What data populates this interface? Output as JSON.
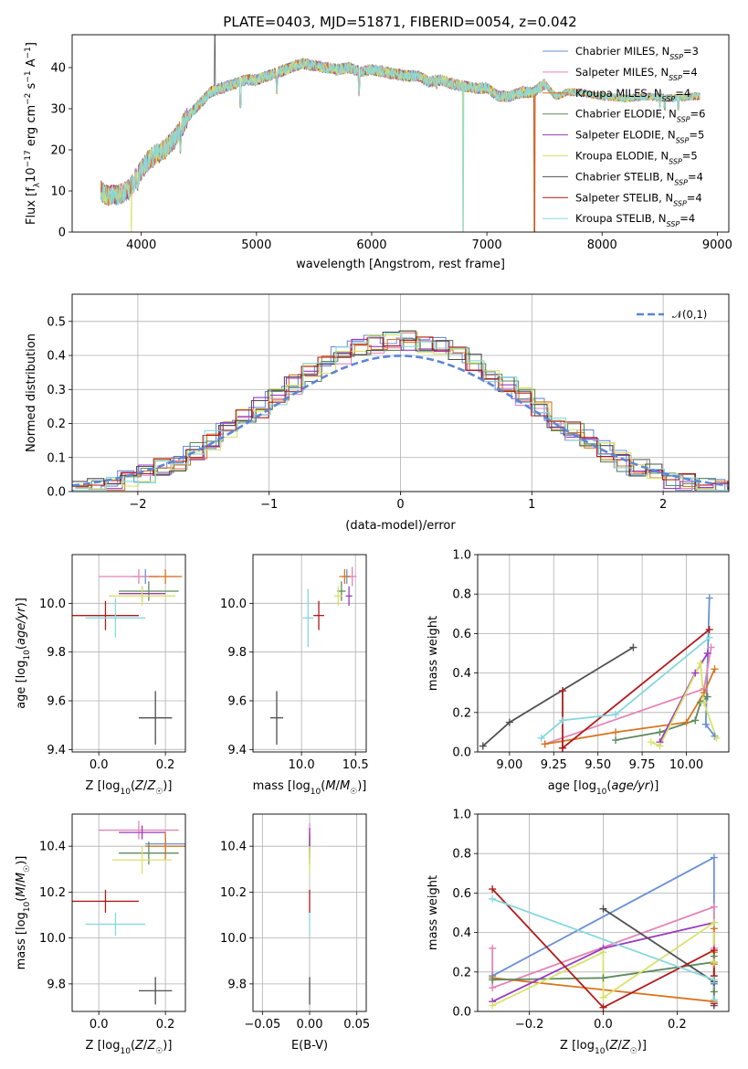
{
  "figure": {
    "title": "PLATE=0403, MJD=51871, FIBERID=0054, z=0.042"
  },
  "colors": {
    "Chabrier MILES": "#6a8fd8",
    "Salpeter MILES": "#e585b6",
    "Kroupa MILES": "#d8751f",
    "Chabrier ELODIE": "#5e8a5e",
    "Salpeter ELODIE": "#9a3bbf",
    "Kroupa ELODIE": "#d8e36a",
    "Chabrier STELIB": "#4f4f4f",
    "Salpeter STELIB": "#b01a1a",
    "Kroupa STELIB": "#86d8de"
  },
  "chart_data": [
    {
      "id": "spectrum",
      "type": "line",
      "xlabel": "wavelength [Angstrom, rest frame]",
      "ylabel": "Flux [f_λ 10^-17 erg cm^-2 s^-1 A^-1]",
      "xlim": [
        3400,
        9100
      ],
      "ylim": [
        0,
        48
      ],
      "xticks": [
        4000,
        5000,
        6000,
        7000,
        8000,
        9000
      ],
      "yticks": [
        0,
        10,
        20,
        30,
        40
      ],
      "grid": false,
      "legend_position": "top-right",
      "series": [
        {
          "name": "Chabrier MILES",
          "nssp": "3"
        },
        {
          "name": "Salpeter MILES",
          "nssp": "4"
        },
        {
          "name": "Kroupa MILES",
          "nssp": "4"
        },
        {
          "name": "Chabrier ELODIE",
          "nssp": "6"
        },
        {
          "name": "Salpeter ELODIE",
          "nssp": "5"
        },
        {
          "name": "Kroupa ELODIE",
          "nssp": "5"
        },
        {
          "name": "Chabrier STELIB",
          "nssp": "4"
        },
        {
          "name": "Salpeter STELIB",
          "nssp": "4"
        },
        {
          "name": "Kroupa STELIB",
          "nssp": "4"
        }
      ],
      "continuum": [
        [
          3650,
          10
        ],
        [
          3700,
          9
        ],
        [
          3800,
          9
        ],
        [
          3900,
          10.5
        ],
        [
          3950,
          13
        ],
        [
          4000,
          15
        ],
        [
          4050,
          17
        ],
        [
          4100,
          18.5
        ],
        [
          4200,
          20
        ],
        [
          4300,
          23
        ],
        [
          4400,
          28
        ],
        [
          4500,
          31
        ],
        [
          4600,
          34
        ],
        [
          4700,
          35
        ],
        [
          4800,
          36
        ],
        [
          4900,
          37
        ],
        [
          5000,
          37
        ],
        [
          5100,
          38
        ],
        [
          5200,
          39
        ],
        [
          5300,
          40
        ],
        [
          5400,
          41
        ],
        [
          5500,
          40.5
        ],
        [
          5600,
          40
        ],
        [
          5700,
          39.5
        ],
        [
          5800,
          40
        ],
        [
          5900,
          39
        ],
        [
          6000,
          39.5
        ],
        [
          6100,
          39
        ],
        [
          6200,
          38.5
        ],
        [
          6300,
          38
        ],
        [
          6400,
          38
        ],
        [
          6500,
          36.5
        ],
        [
          6600,
          37
        ],
        [
          6700,
          36
        ],
        [
          6800,
          35.5
        ],
        [
          6900,
          35
        ],
        [
          7000,
          35
        ],
        [
          7100,
          33
        ],
        [
          7200,
          33
        ],
        [
          7300,
          34
        ],
        [
          7400,
          34
        ],
        [
          7500,
          36
        ],
        [
          7600,
          33
        ],
        [
          7700,
          34
        ],
        [
          7800,
          34
        ],
        [
          7900,
          33.5
        ],
        [
          8000,
          33
        ],
        [
          8200,
          32.5
        ],
        [
          8400,
          33
        ],
        [
          8600,
          32.5
        ],
        [
          8800,
          33
        ]
      ],
      "absorption_lines": [
        [
          3934,
          10.5
        ],
        [
          3969,
          11
        ],
        [
          4101,
          16.5
        ],
        [
          4340,
          20
        ],
        [
          4861,
          31
        ],
        [
          5175,
          34.5
        ],
        [
          5890,
          34
        ],
        [
          6563,
          35.5
        ],
        [
          8500,
          31
        ],
        [
          8542,
          30.5
        ],
        [
          8662,
          30.5
        ]
      ]
    },
    {
      "id": "residuals",
      "type": "line",
      "xlabel": "(data-model)/error",
      "ylabel": "Normed distribution",
      "xlim": [
        -2.5,
        2.5
      ],
      "ylim": [
        0,
        0.58
      ],
      "xticks": [
        -2,
        -1,
        0,
        1,
        2
      ],
      "yticks": [
        0.0,
        0.1,
        0.2,
        0.3,
        0.4,
        0.5
      ],
      "grid": true,
      "legend_position": "top-right",
      "reference_curve": {
        "name": "𝒩(0,1)",
        "mean": 0,
        "sigma": 1
      },
      "histogram_bin_width": 0.125
    },
    {
      "id": "age_vs_Z",
      "type": "scatter",
      "xlabel": "Z [log10(Z/Z☉)]",
      "ylabel": "age  [log10(age/yr)]",
      "xlim": [
        -0.08,
        0.26
      ],
      "ylim": [
        9.39,
        10.2
      ],
      "xticks": [
        0.0,
        0.2
      ],
      "yticks": [
        9.4,
        9.6,
        9.8,
        10.0
      ],
      "grid": true,
      "points": [
        {
          "series": "Chabrier MILES",
          "x": 0.14,
          "xerr": 0.04,
          "y": 10.11,
          "yerr": 0.03
        },
        {
          "series": "Salpeter MILES",
          "x": 0.12,
          "xerr": 0.12,
          "y": 10.11,
          "yerr": 0.03
        },
        {
          "series": "Kroupa MILES",
          "x": 0.2,
          "xerr": 0.05,
          "y": 10.11,
          "yerr": 0.03
        },
        {
          "series": "Chabrier ELODIE",
          "x": 0.15,
          "xerr": 0.09,
          "y": 10.05,
          "yerr": 0.04
        },
        {
          "series": "Salpeter ELODIE",
          "x": 0.13,
          "xerr": 0.07,
          "y": 10.04,
          "yerr": 0.03
        },
        {
          "series": "Kroupa ELODIE",
          "x": 0.13,
          "xerr": 0.1,
          "y": 10.03,
          "yerr": 0.04
        },
        {
          "series": "Chabrier STELIB",
          "x": 0.17,
          "xerr": 0.05,
          "y": 9.53,
          "yerr": 0.11
        },
        {
          "series": "Salpeter STELIB",
          "x": 0.02,
          "xerr": 0.1,
          "y": 9.95,
          "yerr": 0.06
        },
        {
          "series": "Kroupa STELIB",
          "x": 0.05,
          "xerr": 0.09,
          "y": 9.94,
          "yerr": 0.08
        }
      ]
    },
    {
      "id": "age_vs_mass",
      "type": "scatter",
      "xlabel": "mass [log10(M/M☉)]",
      "ylabel": "",
      "xlim": [
        9.55,
        10.6
      ],
      "ylim": [
        9.39,
        10.2
      ],
      "xticks": [
        10.0,
        10.5
      ],
      "yticks": [
        9.4,
        9.6,
        9.8,
        10.0
      ],
      "grid": true,
      "points": [
        {
          "series": "Chabrier MILES",
          "x": 10.42,
          "xerr": 0.04,
          "y": 10.11,
          "yerr": 0.03
        },
        {
          "series": "Salpeter MILES",
          "x": 10.47,
          "xerr": 0.04,
          "y": 10.11,
          "yerr": 0.04
        },
        {
          "series": "Kroupa MILES",
          "x": 10.4,
          "xerr": 0.05,
          "y": 10.11,
          "yerr": 0.03
        },
        {
          "series": "Chabrier ELODIE",
          "x": 10.37,
          "xerr": 0.04,
          "y": 10.05,
          "yerr": 0.04
        },
        {
          "series": "Salpeter ELODIE",
          "x": 10.44,
          "xerr": 0.03,
          "y": 10.03,
          "yerr": 0.04
        },
        {
          "series": "Kroupa ELODIE",
          "x": 10.34,
          "xerr": 0.04,
          "y": 10.03,
          "yerr": 0.04
        },
        {
          "series": "Chabrier STELIB",
          "x": 9.77,
          "xerr": 0.06,
          "y": 9.53,
          "yerr": 0.11
        },
        {
          "series": "Salpeter STELIB",
          "x": 10.16,
          "xerr": 0.05,
          "y": 9.95,
          "yerr": 0.06
        },
        {
          "series": "Kroupa STELIB",
          "x": 10.06,
          "xerr": 0.05,
          "y": 9.94,
          "yerr": 0.12
        }
      ]
    },
    {
      "id": "weights_vs_age",
      "type": "line",
      "xlabel": "age  [log10(age/yr)]",
      "ylabel": "mass weight",
      "xlim": [
        8.82,
        10.24
      ],
      "ylim": [
        0,
        1.0
      ],
      "xticks": [
        9.0,
        9.25,
        9.5,
        9.75,
        10.0
      ],
      "yticks": [
        0.0,
        0.2,
        0.4,
        0.6,
        0.8,
        1.0
      ],
      "grid": true,
      "series": [
        {
          "name": "Chabrier MILES",
          "x": [
            10.13,
            10.11,
            10.16
          ],
          "y": [
            0.78,
            0.14,
            0.08
          ]
        },
        {
          "name": "Salpeter MILES",
          "x": [
            9.2,
            10.1,
            10.14
          ],
          "y": [
            0.04,
            0.32,
            0.53
          ]
        },
        {
          "name": "Kroupa MILES",
          "x": [
            9.2,
            9.6,
            10.0,
            10.1,
            10.16
          ],
          "y": [
            0.04,
            0.1,
            0.15,
            0.3,
            0.42
          ]
        },
        {
          "name": "Chabrier ELODIE",
          "x": [
            9.6,
            9.85,
            10.05,
            10.08,
            10.12
          ],
          "y": [
            0.06,
            0.1,
            0.16,
            0.25,
            0.28
          ]
        },
        {
          "name": "Salpeter ELODIE",
          "x": [
            9.85,
            10.05,
            10.12
          ],
          "y": [
            0.05,
            0.4,
            0.5
          ]
        },
        {
          "name": "Kroupa ELODIE",
          "x": [
            9.8,
            9.85,
            10.08,
            10.1,
            10.17
          ],
          "y": [
            0.05,
            0.03,
            0.45,
            0.25,
            0.07
          ]
        },
        {
          "name": "Chabrier STELIB",
          "x": [
            8.85,
            9.0,
            9.7
          ],
          "y": [
            0.03,
            0.15,
            0.53
          ]
        },
        {
          "name": "Salpeter STELIB",
          "x": [
            9.3,
            9.3,
            9.3,
            10.13
          ],
          "y": [
            0.31,
            0.02,
            0.02,
            0.62
          ]
        },
        {
          "name": "Kroupa STELIB",
          "x": [
            9.18,
            9.3,
            9.6,
            10.13
          ],
          "y": [
            0.07,
            0.16,
            0.19,
            0.58
          ]
        }
      ]
    },
    {
      "id": "mass_vs_Z",
      "type": "scatter",
      "xlabel": "Z [log10(Z/Z☉)]",
      "ylabel": "mass [log10(M/M☉)]",
      "xlim": [
        -0.08,
        0.26
      ],
      "ylim": [
        9.68,
        10.54
      ],
      "xticks": [
        0.0,
        0.2
      ],
      "yticks": [
        9.8,
        10.0,
        10.2,
        10.4
      ],
      "grid": true,
      "points": [
        {
          "series": "Chabrier MILES",
          "x": 0.2,
          "xerr": 0.06,
          "y": 10.41,
          "yerr": 0.04
        },
        {
          "series": "Salpeter MILES",
          "x": 0.12,
          "xerr": 0.12,
          "y": 10.47,
          "yerr": 0.04
        },
        {
          "series": "Kroupa MILES",
          "x": 0.2,
          "xerr": 0.06,
          "y": 10.4,
          "yerr": 0.06
        },
        {
          "series": "Chabrier ELODIE",
          "x": 0.15,
          "xerr": 0.09,
          "y": 10.37,
          "yerr": 0.05
        },
        {
          "series": "Salpeter ELODIE",
          "x": 0.13,
          "xerr": 0.07,
          "y": 10.46,
          "yerr": 0.03
        },
        {
          "series": "Kroupa ELODIE",
          "x": 0.13,
          "xerr": 0.09,
          "y": 10.34,
          "yerr": 0.06
        },
        {
          "series": "Chabrier STELIB",
          "x": 0.17,
          "xerr": 0.05,
          "y": 9.77,
          "yerr": 0.06
        },
        {
          "series": "Salpeter STELIB",
          "x": 0.02,
          "xerr": 0.1,
          "y": 10.16,
          "yerr": 0.05
        },
        {
          "series": "Kroupa STELIB",
          "x": 0.05,
          "xerr": 0.09,
          "y": 10.06,
          "yerr": 0.05
        }
      ]
    },
    {
      "id": "mass_vs_EBV",
      "type": "scatter",
      "xlabel": "E(B-V)",
      "ylabel": "",
      "xlim": [
        -0.06,
        0.06
      ],
      "ylim": [
        9.68,
        10.54
      ],
      "xticks": [
        -0.05,
        0.0,
        0.05
      ],
      "yticks": [
        9.8,
        10.0,
        10.2,
        10.4
      ],
      "grid": true,
      "points": [
        {
          "series": "Chabrier MILES",
          "x": 0.0,
          "y": 10.42,
          "yerr": 0.04
        },
        {
          "series": "Salpeter MILES",
          "x": 0.0,
          "y": 10.46,
          "yerr": 0.04
        },
        {
          "series": "Kroupa MILES",
          "x": 0.0,
          "y": 10.4,
          "yerr": 0.05
        },
        {
          "series": "Chabrier ELODIE",
          "x": 0.0,
          "y": 10.37,
          "yerr": 0.05
        },
        {
          "series": "Salpeter ELODIE",
          "x": 0.0,
          "y": 10.44,
          "yerr": 0.04
        },
        {
          "series": "Kroupa ELODIE",
          "x": 0.0,
          "y": 10.34,
          "yerr": 0.06
        },
        {
          "series": "Chabrier STELIB",
          "x": 0.0,
          "y": 9.77,
          "yerr": 0.06
        },
        {
          "series": "Salpeter STELIB",
          "x": 0.0,
          "y": 10.16,
          "yerr": 0.05
        },
        {
          "series": "Kroupa STELIB",
          "x": 0.0,
          "y": 10.06,
          "yerr": 0.05
        }
      ]
    },
    {
      "id": "weights_vs_Z",
      "type": "line",
      "xlabel": "Z [log10(Z/Z☉)]",
      "ylabel": "mass weight",
      "xlim": [
        -0.34,
        0.34
      ],
      "ylim": [
        0,
        1.0
      ],
      "xticks": [
        -0.2,
        0.0,
        0.2
      ],
      "yticks": [
        0.0,
        0.2,
        0.4,
        0.6,
        0.8,
        1.0
      ],
      "grid": true,
      "series": [
        {
          "name": "Chabrier MILES",
          "x": [
            -0.3,
            0.3,
            0.3
          ],
          "y": [
            0.18,
            0.78,
            0.14
          ]
        },
        {
          "name": "Salpeter MILES",
          "x": [
            -0.3,
            -0.3,
            0.3,
            0.3
          ],
          "y": [
            0.32,
            0.12,
            0.53,
            0.32
          ]
        },
        {
          "name": "Kroupa MILES",
          "x": [
            -0.3,
            0.3,
            0.3,
            0.3,
            0.3
          ],
          "y": [
            0.17,
            0.05,
            0.3,
            0.42,
            0.24
          ]
        },
        {
          "name": "Chabrier ELODIE",
          "x": [
            -0.3,
            0.0,
            0.3,
            0.3,
            0.3
          ],
          "y": [
            0.16,
            0.17,
            0.25,
            0.28,
            0.1
          ]
        },
        {
          "name": "Salpeter ELODIE",
          "x": [
            -0.3,
            0.0,
            0.3
          ],
          "y": [
            0.05,
            0.32,
            0.45
          ]
        },
        {
          "name": "Kroupa ELODIE",
          "x": [
            -0.3,
            0.0,
            0.0,
            0.3,
            0.3
          ],
          "y": [
            0.03,
            0.3,
            0.07,
            0.45,
            0.25
          ]
        },
        {
          "name": "Chabrier STELIB",
          "x": [
            0.0,
            0.3,
            0.3
          ],
          "y": [
            0.52,
            0.15,
            0.03
          ]
        },
        {
          "name": "Salpeter STELIB",
          "x": [
            -0.3,
            0.0,
            0.3,
            0.3,
            0.3
          ],
          "y": [
            0.62,
            0.02,
            0.31,
            0.18,
            0.04
          ]
        },
        {
          "name": "Kroupa STELIB",
          "x": [
            -0.3,
            0.3,
            0.3
          ],
          "y": [
            0.57,
            0.16,
            0.06
          ]
        }
      ]
    }
  ]
}
